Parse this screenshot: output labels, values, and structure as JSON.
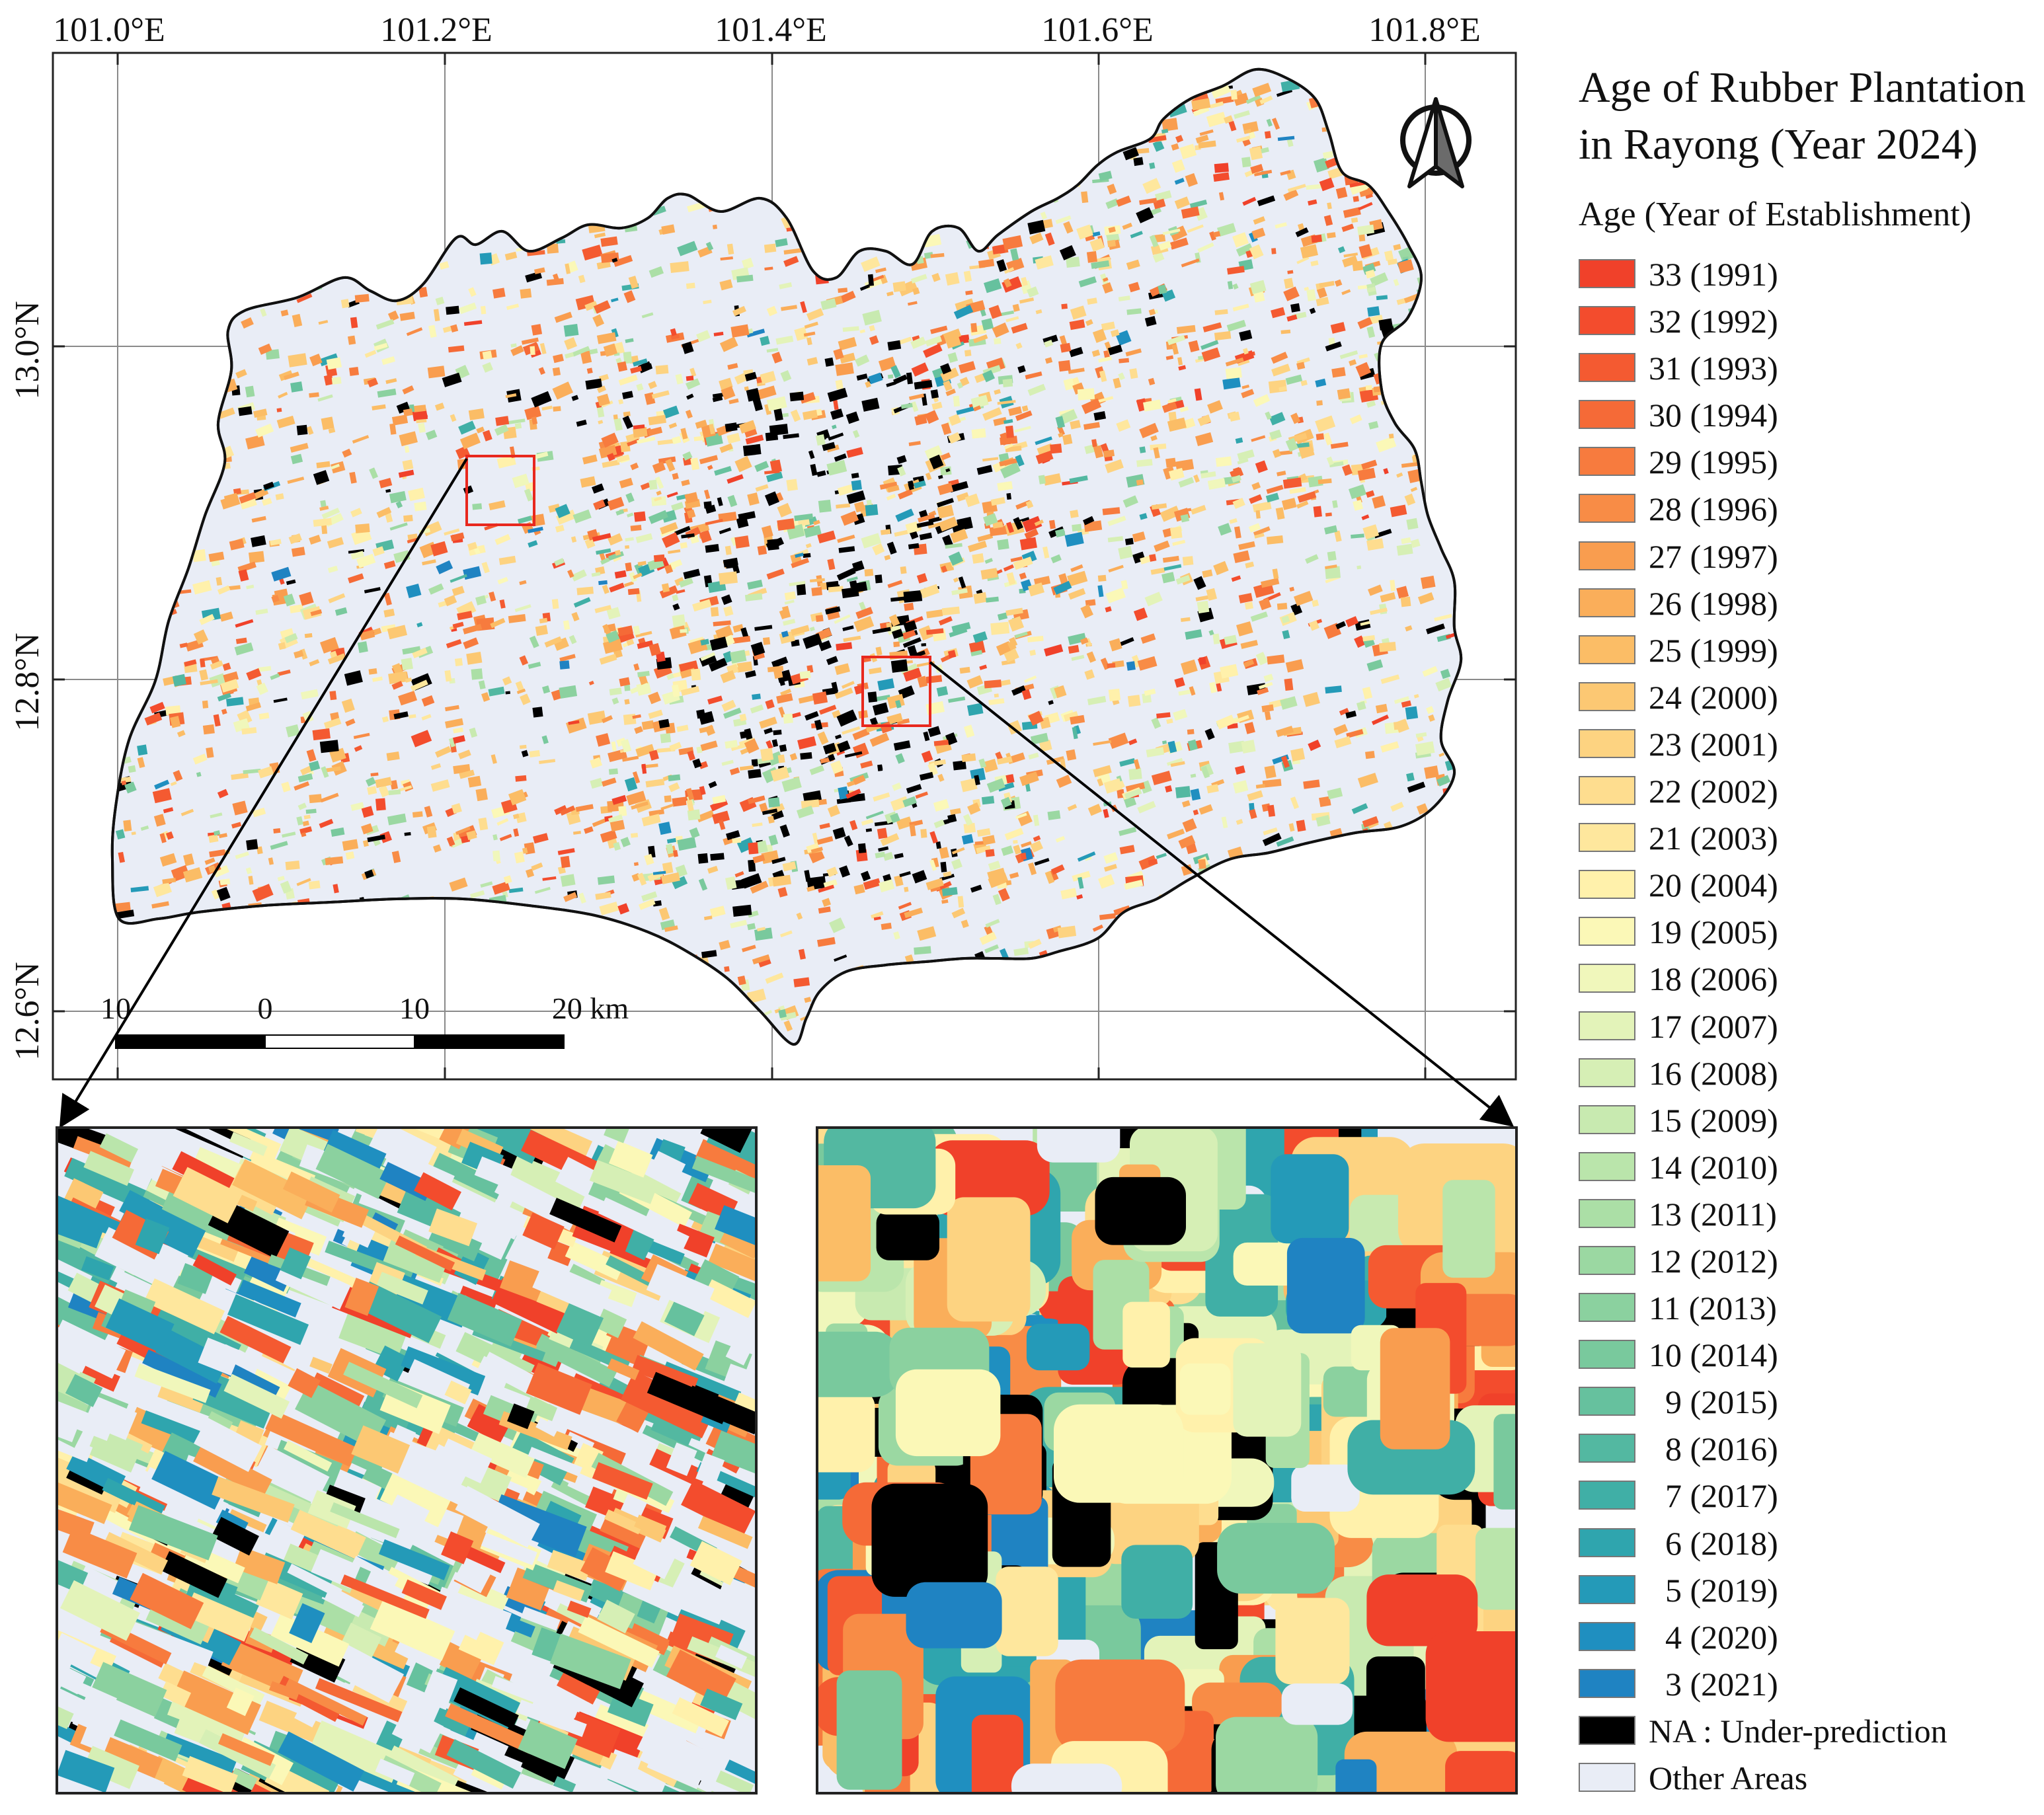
{
  "map": {
    "lon_ticks": [
      "101.0°E",
      "101.2°E",
      "101.4°E",
      "101.6°E",
      "101.8°E"
    ],
    "lat_ticks": [
      "13.0°N",
      "12.8°N",
      "12.6°N"
    ],
    "scalebar": {
      "labels": [
        "10",
        "0",
        "10",
        "20 km"
      ]
    },
    "north_arrow": "north-arrow-icon"
  },
  "legend": {
    "title_line1": "Age of Rubber Plantation",
    "title_line2": "in Rayong (Year 2024)",
    "subtitle": "Age (Year of Establishment)",
    "items": [
      {
        "label": "33 (1991)",
        "color": "#f0412a"
      },
      {
        "label": "32 (1992)",
        "color": "#f34c2d"
      },
      {
        "label": "31 (1993)",
        "color": "#f45a31"
      },
      {
        "label": "30 (1994)",
        "color": "#f56a37"
      },
      {
        "label": "29 (1995)",
        "color": "#f77b3e"
      },
      {
        "label": "28 (1996)",
        "color": "#f88c46"
      },
      {
        "label": "27 (1997)",
        "color": "#f99d4f"
      },
      {
        "label": "26 (1998)",
        "color": "#faae5a"
      },
      {
        "label": "25 (1999)",
        "color": "#fbbd66"
      },
      {
        "label": "24 (2000)",
        "color": "#fcc873"
      },
      {
        "label": "23 (2001)",
        "color": "#fdd381"
      },
      {
        "label": "22 (2002)",
        "color": "#fedd8f"
      },
      {
        "label": "21 (2003)",
        "color": "#fee79d"
      },
      {
        "label": "20 (2004)",
        "color": "#fff1ab"
      },
      {
        "label": "19 (2005)",
        "color": "#fbf8b7"
      },
      {
        "label": "18 (2006)",
        "color": "#f0f7bb"
      },
      {
        "label": "17 (2007)",
        "color": "#e3f3b9"
      },
      {
        "label": "16 (2008)",
        "color": "#d6efb5"
      },
      {
        "label": "15 (2009)",
        "color": "#c8eab0"
      },
      {
        "label": "14 (2010)",
        "color": "#bae5ab"
      },
      {
        "label": "13 (2011)",
        "color": "#abdfa6"
      },
      {
        "label": "12 (2012)",
        "color": "#9bd8a2"
      },
      {
        "label": "11 (2013)",
        "color": "#8bd19f"
      },
      {
        "label": "10 (2014)",
        "color": "#79c99d"
      },
      {
        "label": "  9 (2015)",
        "color": "#66c19e"
      },
      {
        "label": "  8 (2016)",
        "color": "#53b8a1"
      },
      {
        "label": "  7 (2017)",
        "color": "#40afa6"
      },
      {
        "label": "  6 (2018)",
        "color": "#2fa5ae"
      },
      {
        "label": "  5 (2019)",
        "color": "#249ab8"
      },
      {
        "label": "  4 (2020)",
        "color": "#1f8fc0"
      },
      {
        "label": "  3 (2021)",
        "color": "#1f83c2"
      },
      {
        "label": "NA : Under-prediction",
        "color": "#000000"
      },
      {
        "label": "Other Areas",
        "color": "#e9edf6"
      }
    ]
  }
}
